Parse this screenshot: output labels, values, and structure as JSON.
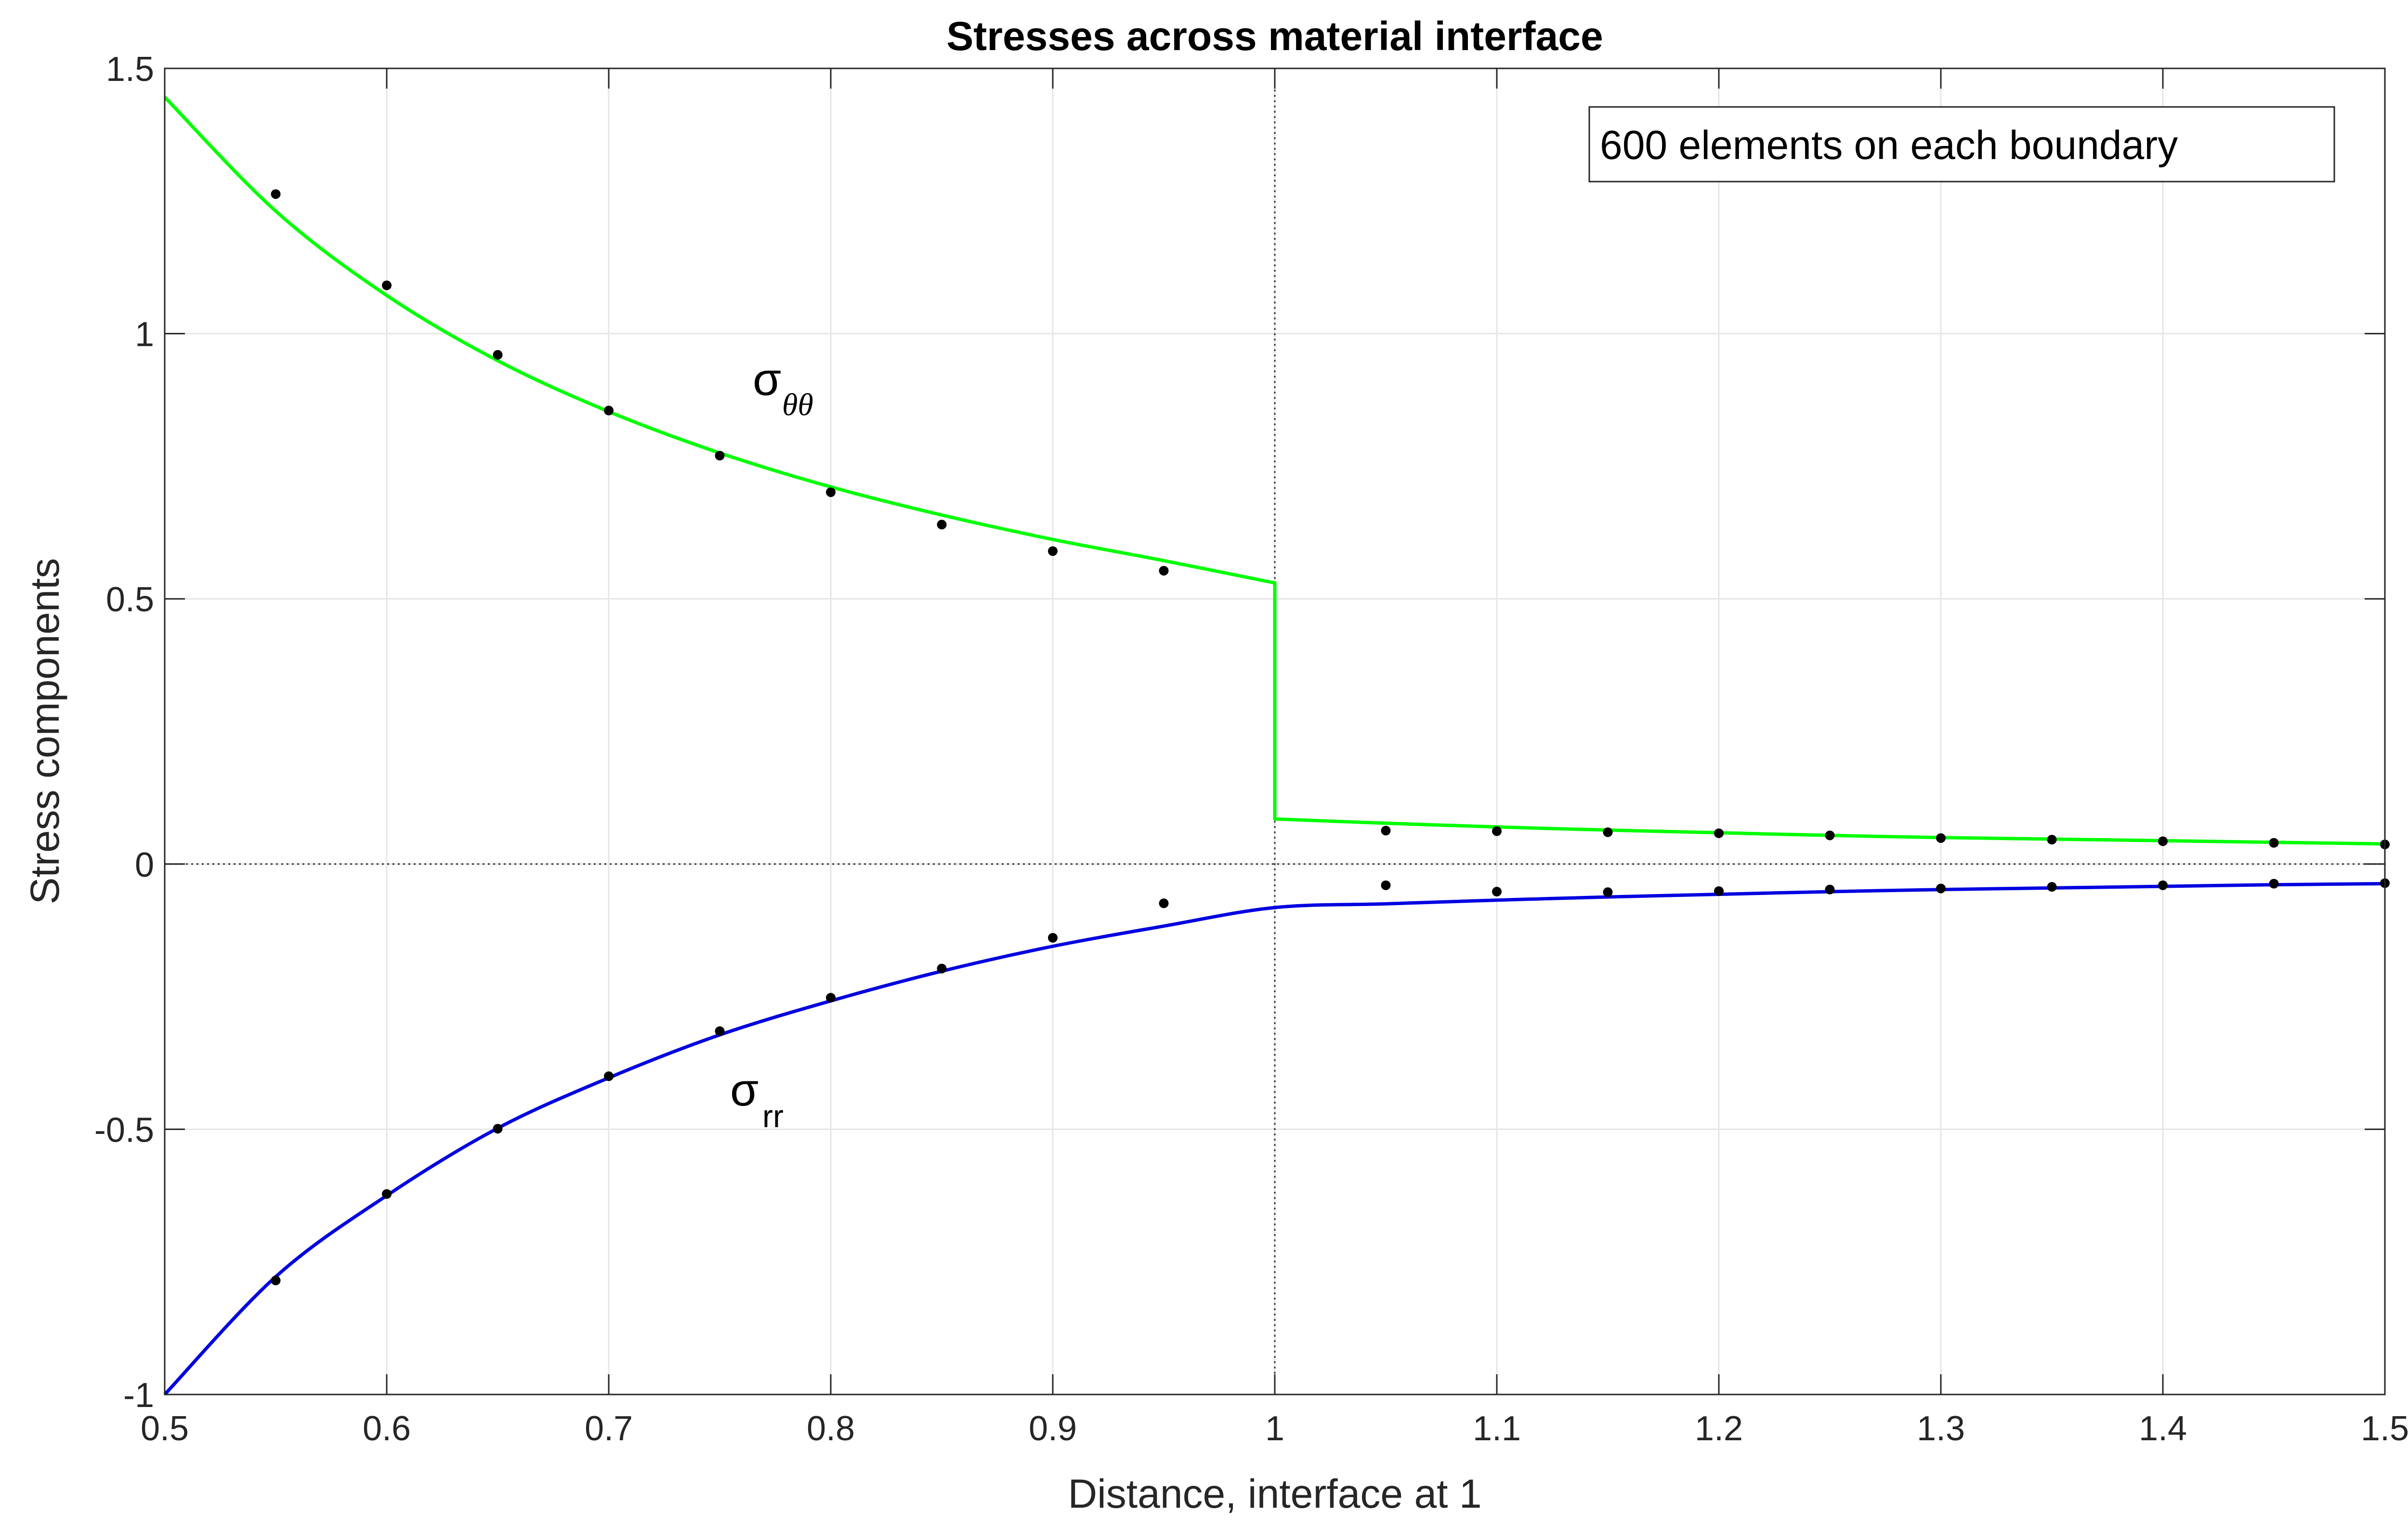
{
  "chart_data": {
    "type": "line",
    "title": "Stresses across material interface",
    "xlabel": "Distance, interface at 1",
    "ylabel": "Stress components",
    "xlim": [
      0.5,
      1.5
    ],
    "ylim": [
      -1,
      1.5
    ],
    "grid": true,
    "x_ticks": [
      0.5,
      0.6,
      0.7,
      0.8,
      0.9,
      1.0,
      1.1,
      1.2,
      1.3,
      1.4,
      1.5
    ],
    "x_tick_labels": [
      "0.5",
      "0.6",
      "0.7",
      "0.8",
      "0.9",
      "1",
      "1.1",
      "1.2",
      "1.3",
      "1.4",
      "1.5"
    ],
    "y_ticks": [
      -1,
      -0.5,
      0,
      0.5,
      1,
      1.5
    ],
    "y_tick_labels": [
      "-1",
      "-0.5",
      "0",
      "0.5",
      "1",
      "1.5"
    ],
    "reference_lines": {
      "x": 1,
      "y": 0,
      "style": "dotted"
    },
    "annotation_box": "600 elements on each boundary",
    "series": [
      {
        "name": "sigma_theta_theta",
        "label_main": "σ",
        "label_sub": "θθ",
        "color": "#00ff00",
        "style": "line",
        "x": [
          0.5,
          0.55,
          0.6,
          0.65,
          0.7,
          0.75,
          0.8,
          0.85,
          0.9,
          0.95,
          1.0,
          1.0,
          1.05,
          1.1,
          1.15,
          1.2,
          1.25,
          1.3,
          1.35,
          1.4,
          1.45,
          1.5
        ],
        "values": [
          1.446,
          1.231,
          1.072,
          0.949,
          0.853,
          0.775,
          0.711,
          0.658,
          0.612,
          0.572,
          0.53,
          0.085,
          0.077,
          0.07,
          0.064,
          0.059,
          0.054,
          0.05,
          0.047,
          0.044,
          0.041,
          0.038
        ]
      },
      {
        "name": "sigma_rr",
        "label_main": "σ",
        "label_sub": "rr",
        "color": "#0000e0",
        "style": "line",
        "x": [
          0.5,
          0.55,
          0.6,
          0.65,
          0.7,
          0.75,
          0.8,
          0.85,
          0.9,
          0.95,
          1.0,
          1.05,
          1.1,
          1.15,
          1.2,
          1.25,
          1.3,
          1.35,
          1.4,
          1.45,
          1.5
        ],
        "values": [
          -1.0,
          -0.778,
          -0.625,
          -0.498,
          -0.403,
          -0.322,
          -0.258,
          -0.202,
          -0.155,
          -0.117,
          -0.082,
          -0.075,
          -0.068,
          -0.062,
          -0.057,
          -0.052,
          -0.048,
          -0.045,
          -0.042,
          -0.039,
          -0.037
        ]
      },
      {
        "name": "sigma_theta_theta_points",
        "color": "#000000",
        "style": "markers",
        "x": [
          0.55,
          0.6,
          0.65,
          0.7,
          0.75,
          0.8,
          0.85,
          0.9,
          0.95,
          1.05,
          1.1,
          1.15,
          1.2,
          1.25,
          1.3,
          1.35,
          1.4,
          1.45,
          1.5
        ],
        "values": [
          1.263,
          1.091,
          0.96,
          0.855,
          0.77,
          0.701,
          0.64,
          0.59,
          0.553,
          0.063,
          0.062,
          0.06,
          0.058,
          0.054,
          0.049,
          0.046,
          0.043,
          0.04,
          0.037
        ]
      },
      {
        "name": "sigma_rr_points",
        "color": "#000000",
        "style": "markers",
        "x": [
          0.55,
          0.6,
          0.65,
          0.7,
          0.75,
          0.8,
          0.85,
          0.9,
          0.95,
          1.05,
          1.1,
          1.15,
          1.2,
          1.25,
          1.3,
          1.35,
          1.4,
          1.45,
          1.5
        ],
        "values": [
          -0.785,
          -0.622,
          -0.499,
          -0.4,
          -0.315,
          -0.252,
          -0.197,
          -0.139,
          -0.074,
          -0.04,
          -0.052,
          -0.053,
          -0.051,
          -0.048,
          -0.046,
          -0.043,
          -0.04,
          -0.037,
          -0.036
        ]
      }
    ]
  }
}
